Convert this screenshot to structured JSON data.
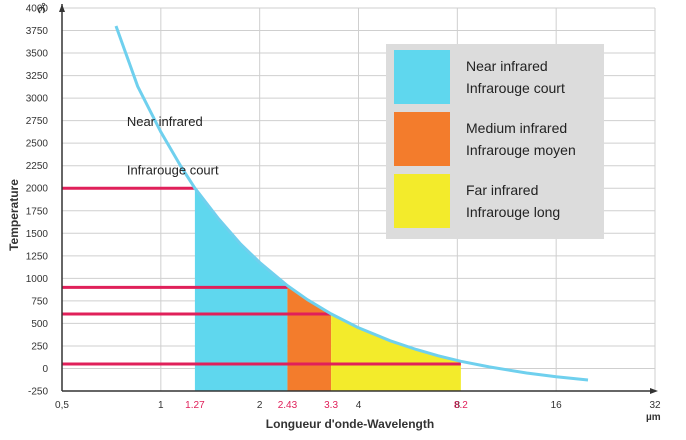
{
  "chart_data": {
    "type": "area",
    "xlabel": "Longueur d'onde-Wavelength",
    "ylabel": "Temperature",
    "x_unit": "µm",
    "y_unit": "°C",
    "x_scale": "log",
    "xlim": [
      0.5,
      32
    ],
    "ylim": [
      -250,
      4000
    ],
    "x_ticks": [
      "0,5",
      "1",
      "2",
      "4",
      "8",
      "16",
      "32"
    ],
    "y_ticks": [
      -250,
      0,
      250,
      500,
      750,
      1000,
      1250,
      1500,
      1750,
      2000,
      2250,
      2500,
      2750,
      3000,
      3250,
      3500,
      3750,
      4000
    ],
    "grid": true,
    "curve": {
      "x": [
        0.73,
        0.85,
        1.0,
        1.15,
        1.27,
        1.5,
        1.75,
        2.0,
        2.43,
        2.8,
        3.3,
        4.0,
        5.0,
        6.0,
        7.0,
        8.2,
        10.0,
        13.0,
        16.0,
        20.0
      ],
      "y": [
        3800,
        3130,
        2625,
        2245,
        2000,
        1660,
        1380,
        1176,
        920,
        762,
        605,
        451,
        307,
        210,
        141,
        80,
        17,
        -50,
        -92,
        -128
      ]
    },
    "bands": [
      {
        "name_en": "Near infrared",
        "name_fr": "Infrarouge court",
        "x_start": 1.27,
        "x_end": 2.43,
        "color": "#5fd7ee"
      },
      {
        "name_en": "Medium infrared",
        "name_fr": "Infrarouge moyen",
        "x_start": 2.43,
        "x_end": 3.3,
        "color": "#f37c2c"
      },
      {
        "name_en": "Far infrared",
        "name_fr": "Infrarouge long",
        "x_start": 3.3,
        "x_end": 8.2,
        "color": "#f3eb2b"
      }
    ],
    "reference_lines": [
      {
        "y": 2000,
        "x_end": 1.27
      },
      {
        "y": 900,
        "x_end": 2.43
      },
      {
        "y": 605,
        "x_end": 3.3
      },
      {
        "y": 50,
        "x_end": 8.2
      }
    ],
    "marked_x": [
      {
        "value": 1.27,
        "label": "1.27"
      },
      {
        "value": 2.43,
        "label": "2.43"
      },
      {
        "value": 3.3,
        "label": "3.3"
      },
      {
        "value": 8.2,
        "label": "8.2"
      }
    ],
    "legend_position": "top-right",
    "annotations": [
      {
        "text": "Near infrared",
        "x": 1.0,
        "y": 2690
      },
      {
        "text": "Infrarouge court",
        "x": 1.0,
        "y": 2150
      }
    ],
    "colors": {
      "curve": "#6fd0ee",
      "reference": "#e0205a",
      "legend_bg": "#dcdcdc",
      "grid": "#cfcfcf"
    }
  }
}
